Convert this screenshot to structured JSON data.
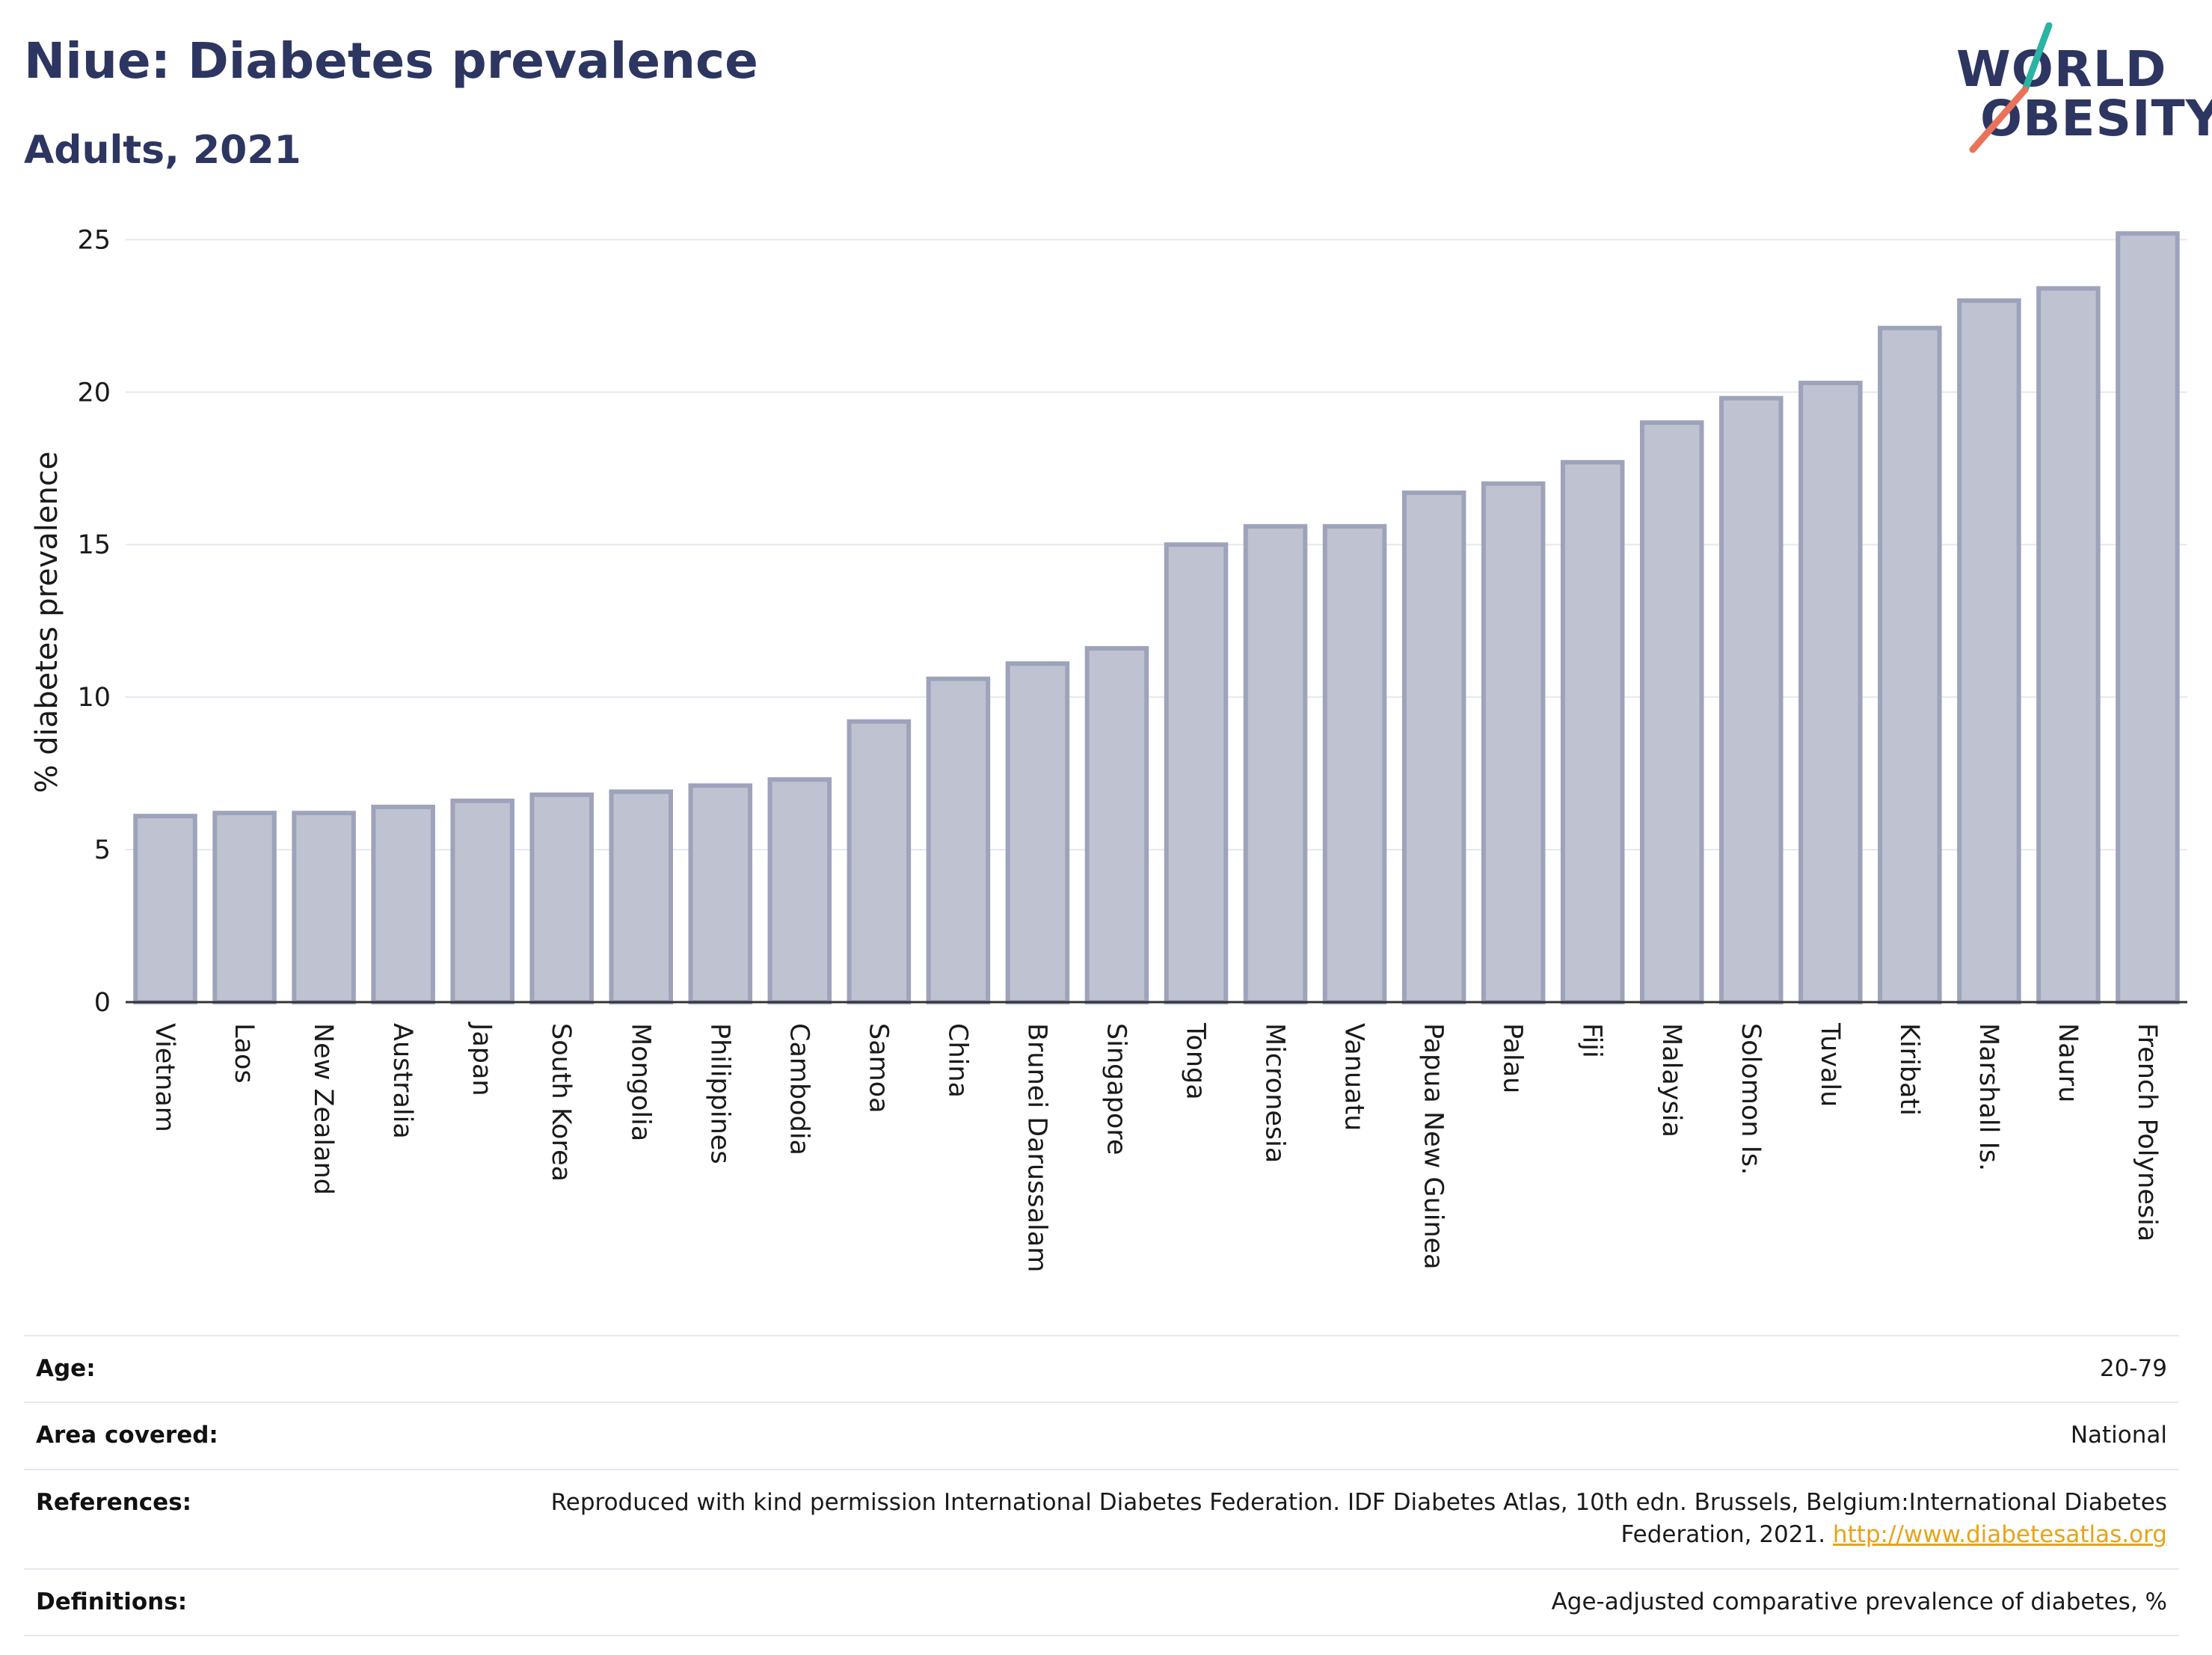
{
  "header": {
    "title": "Niue: Diabetes prevalence",
    "subtitle": "Adults, 2021"
  },
  "logo": {
    "line1": "WORLD",
    "line2": "OBESITY",
    "slash_color_top": "#2bb3a3",
    "slash_color_bottom": "#e8735a"
  },
  "chart_data": {
    "type": "bar",
    "ylabel": "% diabetes prevalence",
    "ylim": [
      0,
      25.5
    ],
    "yticks": [
      0,
      5,
      10,
      15,
      20,
      25
    ],
    "grid": true,
    "bar_color": "#bfc2d0",
    "bar_edge_color": "#9ea3bb",
    "categories": [
      "Vietnam",
      "Laos",
      "New Zealand",
      "Australia",
      "Japan",
      "South Korea",
      "Mongolia",
      "Philippines",
      "Cambodia",
      "Samoa",
      "China",
      "Brunei Darussalam",
      "Singapore",
      "Tonga",
      "Micronesia",
      "Vanuatu",
      "Papua New Guinea",
      "Palau",
      "Fiji",
      "Malaysia",
      "Solomon Is.",
      "Tuvalu",
      "Kiribati",
      "Marshall Is.",
      "Nauru",
      "French Polynesia"
    ],
    "values": [
      6.1,
      6.2,
      6.2,
      6.4,
      6.6,
      6.8,
      6.9,
      7.1,
      7.3,
      9.2,
      10.6,
      11.1,
      11.6,
      15.0,
      15.6,
      15.6,
      16.7,
      17.0,
      17.7,
      19.0,
      19.8,
      20.3,
      22.1,
      23.0,
      23.4,
      25.2
    ]
  },
  "info": {
    "age_label": "Age:",
    "age_value": "20-79",
    "area_label": "Area covered:",
    "area_value": "National",
    "references_label": "References:",
    "references_text": "Reproduced with kind permission International Diabetes Federation.  IDF Diabetes Atlas, 10th edn. Brussels, Belgium:International Diabetes Federation, 2021. ",
    "references_link": "http://www.diabetesatlas.org",
    "definitions_label": "Definitions:",
    "definitions_value": "Age-adjusted comparative prevalence of diabetes, %"
  }
}
